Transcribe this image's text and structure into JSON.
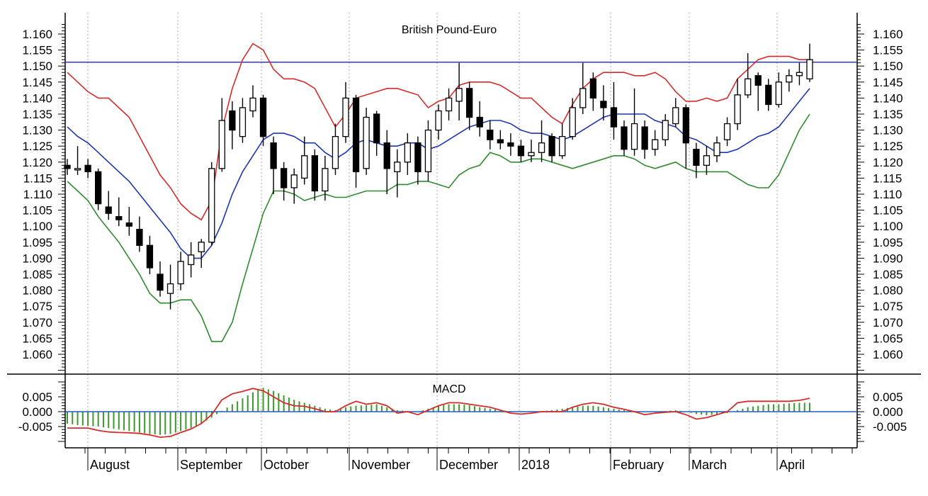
{
  "chart_data": [
    {
      "type": "candlestick",
      "title": "British Pound-Euro",
      "ylim": [
        1.055,
        1.166
      ],
      "yticks": [
        "1.060",
        "1.065",
        "1.070",
        "1.075",
        "1.080",
        "1.085",
        "1.090",
        "1.095",
        "1.100",
        "1.105",
        "1.110",
        "1.115",
        "1.120",
        "1.125",
        "1.130",
        "1.135",
        "1.140",
        "1.145",
        "1.150",
        "1.155",
        "1.160"
      ],
      "xticks": [
        "August",
        "September",
        "October",
        "November",
        "December",
        "2018",
        "February",
        "March",
        "April"
      ],
      "grid": "vertical dotted at month starts",
      "horizontal_line": 1.1512,
      "candles_ohlc": [
        [
          1.119,
          1.121,
          1.116,
          1.118
        ],
        [
          1.118,
          1.125,
          1.116,
          1.118
        ],
        [
          1.119,
          1.121,
          1.115,
          1.117
        ],
        [
          1.117,
          1.118,
          1.105,
          1.107
        ],
        [
          1.106,
          1.111,
          1.102,
          1.104
        ],
        [
          1.103,
          1.109,
          1.1,
          1.102
        ],
        [
          1.101,
          1.106,
          1.097,
          1.1
        ],
        [
          1.099,
          1.103,
          1.092,
          1.094
        ],
        [
          1.094,
          1.097,
          1.085,
          1.087
        ],
        [
          1.085,
          1.089,
          1.078,
          1.08
        ],
        [
          1.079,
          1.088,
          1.074,
          1.082
        ],
        [
          1.082,
          1.092,
          1.08,
          1.089
        ],
        [
          1.088,
          1.095,
          1.084,
          1.091
        ],
        [
          1.092,
          1.096,
          1.087,
          1.095
        ],
        [
          1.095,
          1.12,
          1.094,
          1.118
        ],
        [
          1.118,
          1.14,
          1.117,
          1.133
        ],
        [
          1.136,
          1.139,
          1.124,
          1.13
        ],
        [
          1.128,
          1.14,
          1.126,
          1.137
        ],
        [
          1.136,
          1.144,
          1.134,
          1.14
        ],
        [
          1.14,
          1.141,
          1.125,
          1.128
        ],
        [
          1.126,
          1.128,
          1.11,
          1.118
        ],
        [
          1.118,
          1.12,
          1.108,
          1.112
        ],
        [
          1.112,
          1.118,
          1.107,
          1.116
        ],
        [
          1.115,
          1.128,
          1.113,
          1.122
        ],
        [
          1.122,
          1.124,
          1.108,
          1.111
        ],
        [
          1.111,
          1.122,
          1.108,
          1.118
        ],
        [
          1.118,
          1.132,
          1.116,
          1.128
        ],
        [
          1.128,
          1.145,
          1.126,
          1.14
        ],
        [
          1.14,
          1.141,
          1.112,
          1.117
        ],
        [
          1.118,
          1.137,
          1.116,
          1.134
        ],
        [
          1.135,
          1.136,
          1.122,
          1.126
        ],
        [
          1.126,
          1.13,
          1.11,
          1.118
        ],
        [
          1.117,
          1.124,
          1.109,
          1.12
        ],
        [
          1.12,
          1.129,
          1.116,
          1.126
        ],
        [
          1.126,
          1.128,
          1.113,
          1.117
        ],
        [
          1.117,
          1.133,
          1.114,
          1.13
        ],
        [
          1.13,
          1.138,
          1.127,
          1.136
        ],
        [
          1.136,
          1.143,
          1.133,
          1.14
        ],
        [
          1.139,
          1.151,
          1.133,
          1.143
        ],
        [
          1.143,
          1.145,
          1.13,
          1.134
        ],
        [
          1.134,
          1.139,
          1.128,
          1.131
        ],
        [
          1.13,
          1.133,
          1.124,
          1.127
        ],
        [
          1.127,
          1.13,
          1.124,
          1.126
        ],
        [
          1.126,
          1.129,
          1.122,
          1.125
        ],
        [
          1.125,
          1.127,
          1.12,
          1.122
        ],
        [
          1.122,
          1.127,
          1.12,
          1.123
        ],
        [
          1.123,
          1.133,
          1.12,
          1.126
        ],
        [
          1.128,
          1.129,
          1.12,
          1.122
        ],
        [
          1.122,
          1.132,
          1.121,
          1.128
        ],
        [
          1.128,
          1.14,
          1.127,
          1.137
        ],
        [
          1.137,
          1.151,
          1.135,
          1.143
        ],
        [
          1.146,
          1.148,
          1.136,
          1.14
        ],
        [
          1.139,
          1.144,
          1.133,
          1.137
        ],
        [
          1.137,
          1.145,
          1.127,
          1.131
        ],
        [
          1.131,
          1.133,
          1.122,
          1.124
        ],
        [
          1.124,
          1.143,
          1.122,
          1.132
        ],
        [
          1.131,
          1.133,
          1.121,
          1.124
        ],
        [
          1.124,
          1.13,
          1.122,
          1.127
        ],
        [
          1.127,
          1.135,
          1.125,
          1.133
        ],
        [
          1.132,
          1.14,
          1.131,
          1.137
        ],
        [
          1.137,
          1.138,
          1.118,
          1.126
        ],
        [
          1.124,
          1.126,
          1.115,
          1.119
        ],
        [
          1.119,
          1.125,
          1.116,
          1.122
        ],
        [
          1.122,
          1.128,
          1.12,
          1.126
        ],
        [
          1.127,
          1.134,
          1.125,
          1.132
        ],
        [
          1.132,
          1.146,
          1.13,
          1.141
        ],
        [
          1.141,
          1.154,
          1.14,
          1.146
        ],
        [
          1.147,
          1.148,
          1.136,
          1.144
        ],
        [
          1.144,
          1.146,
          1.136,
          1.138
        ],
        [
          1.138,
          1.148,
          1.137,
          1.145
        ],
        [
          1.145,
          1.149,
          1.142,
          1.147
        ],
        [
          1.147,
          1.151,
          1.144,
          1.148
        ],
        [
          1.146,
          1.157,
          1.145,
          1.152
        ]
      ],
      "bollinger_upper": [
        1.148,
        1.145,
        1.142,
        1.14,
        1.14,
        1.137,
        1.134,
        1.128,
        1.122,
        1.116,
        1.112,
        1.107,
        1.104,
        1.102,
        1.108,
        1.13,
        1.143,
        1.152,
        1.157,
        1.155,
        1.149,
        1.146,
        1.146,
        1.145,
        1.143,
        1.137,
        1.131,
        1.135,
        1.14,
        1.141,
        1.142,
        1.143,
        1.143,
        1.142,
        1.141,
        1.137,
        1.139,
        1.14,
        1.144,
        1.145,
        1.145,
        1.145,
        1.144,
        1.142,
        1.14,
        1.14,
        1.137,
        1.134,
        1.132,
        1.138,
        1.143,
        1.146,
        1.148,
        1.148,
        1.148,
        1.147,
        1.147,
        1.148,
        1.146,
        1.142,
        1.139,
        1.139,
        1.14,
        1.139,
        1.14,
        1.146,
        1.149,
        1.152,
        1.153,
        1.153,
        1.153,
        1.152,
        1.152
      ],
      "bollinger_middle": [
        1.131,
        1.128,
        1.126,
        1.123,
        1.12,
        1.117,
        1.114,
        1.11,
        1.106,
        1.102,
        1.098,
        1.093,
        1.09,
        1.09,
        1.094,
        1.101,
        1.11,
        1.117,
        1.122,
        1.127,
        1.129,
        1.129,
        1.128,
        1.126,
        1.126,
        1.123,
        1.121,
        1.123,
        1.126,
        1.127,
        1.126,
        1.125,
        1.125,
        1.126,
        1.126,
        1.124,
        1.125,
        1.127,
        1.129,
        1.131,
        1.132,
        1.133,
        1.133,
        1.132,
        1.13,
        1.129,
        1.129,
        1.128,
        1.127,
        1.128,
        1.13,
        1.132,
        1.134,
        1.135,
        1.135,
        1.135,
        1.135,
        1.133,
        1.132,
        1.131,
        1.128,
        1.127,
        1.125,
        1.123,
        1.123,
        1.124,
        1.126,
        1.128,
        1.129,
        1.131,
        1.135,
        1.139,
        1.143
      ],
      "bollinger_lower": [
        1.114,
        1.111,
        1.108,
        1.103,
        1.099,
        1.095,
        1.09,
        1.085,
        1.079,
        1.076,
        1.076,
        1.077,
        1.077,
        1.072,
        1.064,
        1.064,
        1.07,
        1.082,
        1.093,
        1.104,
        1.111,
        1.111,
        1.11,
        1.108,
        1.109,
        1.11,
        1.109,
        1.109,
        1.11,
        1.111,
        1.111,
        1.111,
        1.113,
        1.113,
        1.114,
        1.114,
        1.113,
        1.112,
        1.116,
        1.118,
        1.119,
        1.123,
        1.122,
        1.12,
        1.12,
        1.121,
        1.121,
        1.12,
        1.119,
        1.118,
        1.119,
        1.12,
        1.121,
        1.122,
        1.122,
        1.121,
        1.119,
        1.118,
        1.119,
        1.12,
        1.118,
        1.117,
        1.117,
        1.117,
        1.117,
        1.115,
        1.113,
        1.112,
        1.112,
        1.116,
        1.123,
        1.13,
        1.135
      ]
    },
    {
      "type": "bar+line",
      "title": "MACD",
      "ylim": [
        -0.0105,
        0.0105
      ],
      "yticks": [
        "0.005",
        "0.000",
        "-0.005"
      ],
      "zero_line": 0.0,
      "macd_line": [
        -0.0055,
        -0.0055,
        -0.0055,
        -0.0063,
        -0.0068,
        -0.007,
        -0.0071,
        -0.0073,
        -0.0078,
        -0.0086,
        -0.0083,
        -0.007,
        -0.0058,
        -0.004,
        -0.001,
        0.004,
        0.006,
        0.0068,
        0.0078,
        0.007,
        0.005,
        0.003,
        0.002,
        0.0018,
        0.001,
        0.0,
        0.0,
        0.002,
        0.0035,
        0.0025,
        0.003,
        0.002,
        -0.0005,
        0.0,
        -0.001,
        0.0005,
        0.002,
        0.003,
        0.003,
        0.0025,
        0.002,
        0.0015,
        0.0005,
        -0.0005,
        -0.0008,
        -0.0005,
        0.0,
        0.0,
        0.0,
        0.0015,
        0.0025,
        0.003,
        0.0025,
        0.0015,
        0.0008,
        0.0,
        -0.001,
        -0.0005,
        -0.0002,
        0.0,
        -0.001,
        -0.0025,
        -0.002,
        -0.001,
        0.0,
        0.003,
        0.0035,
        0.0035,
        0.0035,
        0.0035,
        0.0035,
        0.0038,
        0.0045
      ],
      "histogram": [
        -0.004,
        -0.0045,
        -0.0048,
        -0.005,
        -0.0055,
        -0.006,
        -0.0065,
        -0.007,
        -0.0075,
        -0.0078,
        -0.0075,
        -0.0065,
        -0.0055,
        -0.004,
        -0.002,
        0.0003,
        0.0025,
        0.0045,
        0.0065,
        0.008,
        0.007,
        0.0055,
        0.004,
        0.003,
        0.002,
        0.001,
        0.0005,
        0.0015,
        0.002,
        0.0022,
        0.0025,
        0.0015,
        0.0005,
        0.0002,
        0.0,
        0.001,
        0.002,
        0.0025,
        0.0025,
        0.0022,
        0.0015,
        0.001,
        0.0005,
        0.0002,
        -0.0002,
        0.0,
        0.0002,
        0.0005,
        0.001,
        0.0015,
        0.002,
        0.002,
        0.0015,
        0.001,
        0.0005,
        0.0002,
        0.0,
        -0.0002,
        0.0002,
        0.0005,
        0.0,
        -0.0008,
        -0.0012,
        -0.001,
        -0.0005,
        0.0005,
        0.0015,
        0.002,
        0.0025,
        0.0025,
        0.0028,
        0.003,
        0.003
      ]
    }
  ],
  "colors": {
    "upper_band": "#d62b2b",
    "middle_band": "#1f35b0",
    "lower_band": "#2e8b2e",
    "resistance_line": "#2a3ad0",
    "macd_line": "#d62b2b",
    "histogram": "#3a9a2a",
    "zero_line": "#1f5fc0"
  }
}
